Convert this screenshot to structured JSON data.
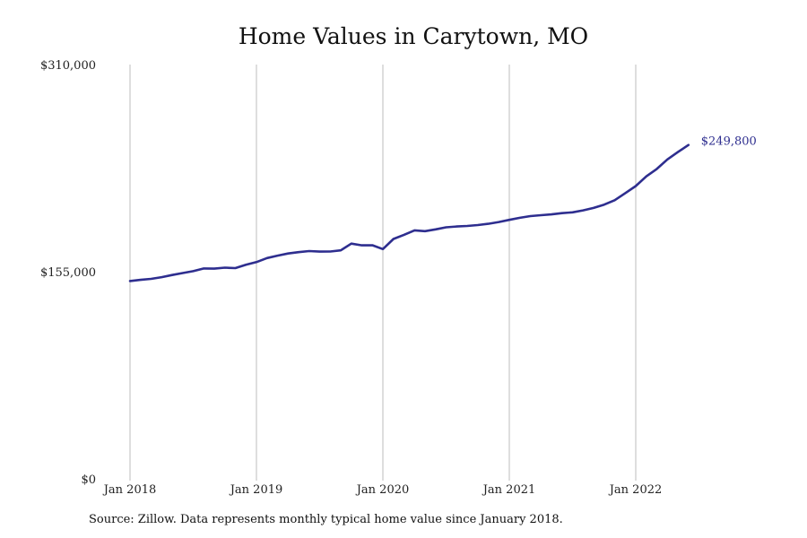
{
  "chart_data": {
    "type": "line",
    "title": "Home Values in Carytown, MO",
    "xlabel": "",
    "ylabel": "",
    "ylim": [
      0,
      310000
    ],
    "y_ticks": [
      {
        "value": 0,
        "label": "$0"
      },
      {
        "value": 155000,
        "label": "$155,000"
      },
      {
        "value": 310000,
        "label": "$310,000"
      }
    ],
    "x_ticks": [
      "Jan 2018",
      "Jan 2019",
      "Jan 2020",
      "Jan 2021",
      "Jan 2022"
    ],
    "x_start": "Jan 2018",
    "grid": "vertical lines at each year tick",
    "line_color": "#2e2e8f",
    "grid_color": "#bdbdbd",
    "series": [
      {
        "values": [
          148000,
          148900,
          149600,
          150900,
          152500,
          154000,
          155400,
          157400,
          157300,
          158000,
          157700,
          160200,
          162200,
          165200,
          167000,
          168600,
          169600,
          170400,
          170000,
          170100,
          171000,
          176000,
          174700,
          174800,
          171900,
          179500,
          182600,
          185900,
          185300,
          186700,
          188200,
          188800,
          189200,
          189900,
          190800,
          192200,
          193800,
          195300,
          196600,
          197300,
          197900,
          198800,
          199400,
          200900,
          202700,
          205200,
          208500,
          213800,
          219100,
          226300,
          231900,
          239000,
          244500,
          249800
        ]
      }
    ],
    "end_label": "$249,800",
    "source": "Source: Zillow. Data represents monthly typical home value since January 2018."
  }
}
